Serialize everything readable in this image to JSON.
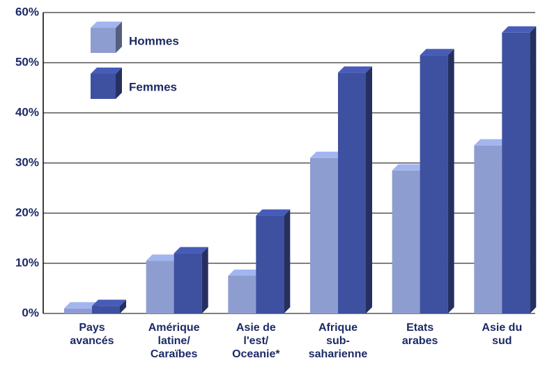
{
  "chart_data": {
    "type": "bar3d",
    "categories": [
      "Pays\navancés",
      "Amérique\nlatine/\nCaraïbes",
      "Asie de\nl'est/\nOceanie*",
      "Afrique\nsub-\nsaharienne",
      "Etats\narabes",
      "Asie du\nsud"
    ],
    "series": [
      {
        "name": "Hommes",
        "color": "#8e9dd0",
        "values": [
          1,
          10.5,
          7.5,
          31,
          28.5,
          33.5
        ]
      },
      {
        "name": "Femmes",
        "color": "#3e50a0",
        "values": [
          1.5,
          12,
          19.5,
          48,
          51.5,
          56
        ]
      }
    ],
    "ylim": [
      0,
      60
    ],
    "yticks": [
      {
        "value": 0,
        "label": "0%"
      },
      {
        "value": 10,
        "label": "10%"
      },
      {
        "value": 20,
        "label": "20%"
      },
      {
        "value": 30,
        "label": "30%"
      },
      {
        "value": 40,
        "label": "40%"
      },
      {
        "value": 50,
        "label": "50%"
      },
      {
        "value": 60,
        "label": "60%"
      }
    ],
    "grid": true,
    "legend": "upper left"
  }
}
